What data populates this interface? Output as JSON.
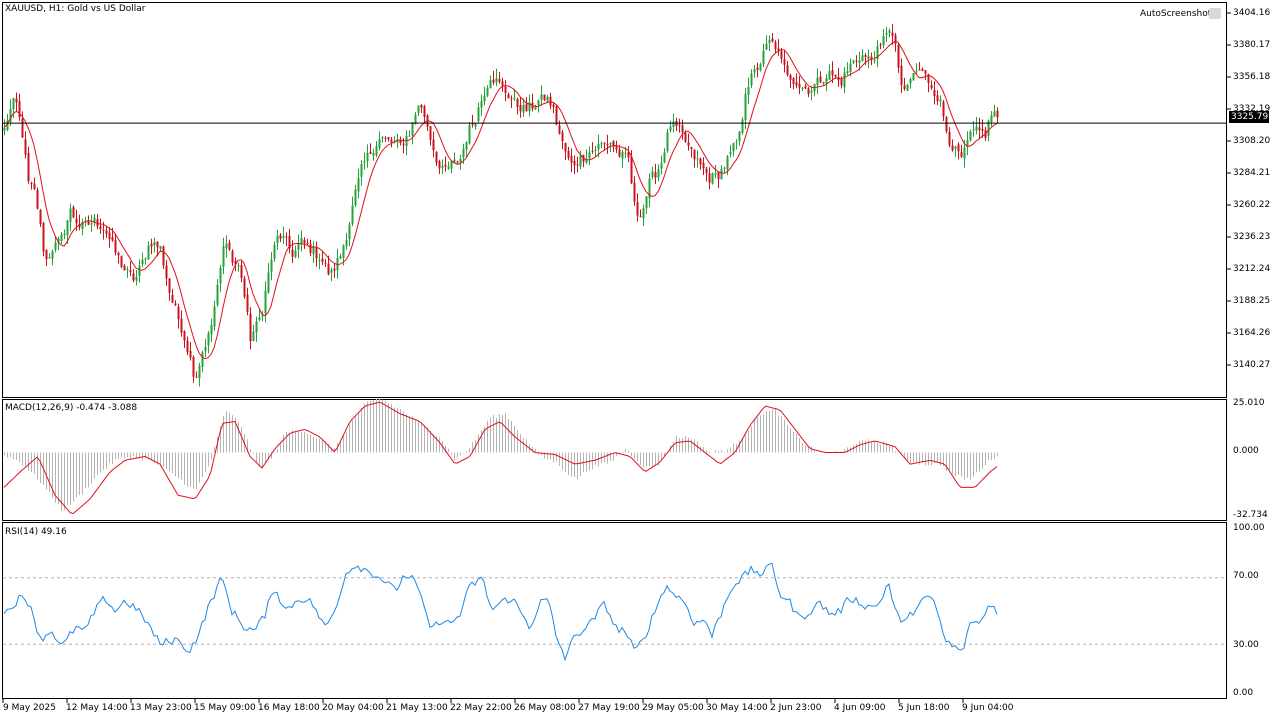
{
  "chart_title": "XAUUSD, H1:  Gold vs US Dollar",
  "watermark": "AutoScreenshot",
  "current_price": "3325.79",
  "colors": {
    "up": "#26a23a",
    "down": "#c8141e",
    "ma": "#e0101a",
    "macd_hist": "#b4b4b4",
    "macd_signal": "#e0101a",
    "rsi": "#1e88e5",
    "level_line": "#000000"
  },
  "price_axis": [
    "3404.16",
    "3380.17",
    "3356.18",
    "3332.19",
    "3308.20",
    "3284.21",
    "3260.22",
    "3236.23",
    "3212.24",
    "3188.25",
    "3164.26",
    "3140.27"
  ],
  "macd": {
    "label": "MACD(12,26,9) -0.474 -3.088",
    "axis": [
      "25.010",
      "0.000",
      "-32.734"
    ]
  },
  "rsi": {
    "label": "RSI(14) 49.16",
    "axis": [
      "100.00",
      "70.00",
      "30.00",
      "0.00"
    ]
  },
  "time_axis": [
    "9 May 2025",
    "12 May 14:00",
    "13 May 23:00",
    "15 May 09:00",
    "16 May 18:00",
    "20 May 04:00",
    "21 May 13:00",
    "22 May 22:00",
    "26 May 08:00",
    "27 May 19:00",
    "29 May 05:00",
    "30 May 14:00",
    "2 Jun 23:00",
    "4 Jun 09:00",
    "5 Jun 18:00",
    "9 Jun 04:00"
  ],
  "chart_data": [
    {
      "type": "candlestick",
      "series_name": "XAUUSD H1",
      "ylim": [
        3127,
        3413
      ],
      "horizontal_level": 3325.79,
      "close_waypoints": [
        [
          0,
          3310
        ],
        [
          8,
          3332
        ],
        [
          15,
          3343
        ],
        [
          22,
          3318
        ],
        [
          28,
          3282
        ],
        [
          35,
          3275
        ],
        [
          45,
          3225
        ],
        [
          52,
          3235
        ],
        [
          60,
          3240
        ],
        [
          70,
          3262
        ],
        [
          80,
          3250
        ],
        [
          95,
          3255
        ],
        [
          105,
          3248
        ],
        [
          115,
          3232
        ],
        [
          125,
          3218
        ],
        [
          135,
          3212
        ],
        [
          150,
          3240
        ],
        [
          160,
          3235
        ],
        [
          170,
          3200
        ],
        [
          180,
          3180
        ],
        [
          188,
          3160
        ],
        [
          195,
          3140
        ],
        [
          202,
          3160
        ],
        [
          210,
          3175
        ],
        [
          218,
          3210
        ],
        [
          225,
          3245
        ],
        [
          232,
          3225
        ],
        [
          240,
          3220
        ],
        [
          250,
          3170
        ],
        [
          257,
          3180
        ],
        [
          262,
          3190
        ],
        [
          270,
          3225
        ],
        [
          278,
          3245
        ],
        [
          285,
          3240
        ],
        [
          293,
          3230
        ],
        [
          300,
          3240
        ],
        [
          310,
          3235
        ],
        [
          320,
          3228
        ],
        [
          330,
          3215
        ],
        [
          340,
          3230
        ],
        [
          348,
          3250
        ],
        [
          355,
          3275
        ],
        [
          362,
          3295
        ],
        [
          370,
          3305
        ],
        [
          380,
          3315
        ],
        [
          390,
          3312
        ],
        [
          400,
          3310
        ],
        [
          410,
          3320
        ],
        [
          418,
          3340
        ],
        [
          425,
          3330
        ],
        [
          432,
          3310
        ],
        [
          440,
          3290
        ],
        [
          450,
          3295
        ],
        [
          460,
          3300
        ],
        [
          468,
          3320
        ],
        [
          475,
          3330
        ],
        [
          482,
          3345
        ],
        [
          490,
          3360
        ],
        [
          498,
          3355
        ],
        [
          506,
          3348
        ],
        [
          515,
          3340
        ],
        [
          525,
          3335
        ],
        [
          535,
          3340
        ],
        [
          545,
          3345
        ],
        [
          552,
          3338
        ],
        [
          560,
          3315
        ],
        [
          570,
          3295
        ],
        [
          580,
          3300
        ],
        [
          590,
          3305
        ],
        [
          600,
          3310
        ],
        [
          610,
          3312
        ],
        [
          620,
          3302
        ],
        [
          628,
          3300
        ],
        [
          635,
          3260
        ],
        [
          642,
          3262
        ],
        [
          650,
          3285
        ],
        [
          660,
          3295
        ],
        [
          670,
          3325
        ],
        [
          680,
          3320
        ],
        [
          690,
          3305
        ],
        [
          700,
          3295
        ],
        [
          710,
          3285
        ],
        [
          720,
          3290
        ],
        [
          730,
          3303
        ],
        [
          740,
          3318
        ],
        [
          745,
          3350
        ],
        [
          752,
          3360
        ],
        [
          760,
          3370
        ],
        [
          768,
          3385
        ],
        [
          775,
          3382
        ],
        [
          782,
          3368
        ],
        [
          790,
          3360
        ],
        [
          800,
          3352
        ],
        [
          810,
          3350
        ],
        [
          820,
          3358
        ],
        [
          830,
          3362
        ],
        [
          840,
          3355
        ],
        [
          850,
          3368
        ],
        [
          860,
          3375
        ],
        [
          870,
          3372
        ],
        [
          880,
          3380
        ],
        [
          888,
          3398
        ],
        [
          895,
          3380
        ],
        [
          903,
          3345
        ],
        [
          910,
          3358
        ],
        [
          918,
          3365
        ],
        [
          925,
          3360
        ],
        [
          932,
          3352
        ],
        [
          940,
          3340
        ],
        [
          948,
          3315
        ],
        [
          955,
          3305
        ],
        [
          962,
          3300
        ],
        [
          970,
          3318
        ],
        [
          978,
          3320
        ],
        [
          985,
          3318
        ],
        [
          992,
          3335
        ],
        [
          999,
          3328
        ]
      ]
    },
    {
      "type": "histogram_line",
      "series_name": "MACD(12,26,9)",
      "ylim": [
        -32.734,
        25.01
      ],
      "hist_waypoints": [
        [
          0,
          0
        ],
        [
          20,
          -5
        ],
        [
          40,
          -15
        ],
        [
          62,
          -30
        ],
        [
          80,
          -22
        ],
        [
          100,
          -10
        ],
        [
          115,
          -4
        ],
        [
          130,
          -2
        ],
        [
          150,
          -4
        ],
        [
          175,
          -12
        ],
        [
          195,
          -20
        ],
        [
          210,
          -5
        ],
        [
          225,
          22
        ],
        [
          240,
          15
        ],
        [
          258,
          -8
        ],
        [
          270,
          -4
        ],
        [
          285,
          10
        ],
        [
          300,
          12
        ],
        [
          315,
          8
        ],
        [
          335,
          2
        ],
        [
          350,
          15
        ],
        [
          365,
          25
        ],
        [
          380,
          28
        ],
        [
          400,
          22
        ],
        [
          420,
          15
        ],
        [
          440,
          8
        ],
        [
          455,
          -4
        ],
        [
          470,
          3
        ],
        [
          490,
          18
        ],
        [
          505,
          20
        ],
        [
          520,
          10
        ],
        [
          540,
          -2
        ],
        [
          555,
          -5
        ],
        [
          575,
          -14
        ],
        [
          590,
          -8
        ],
        [
          610,
          -5
        ],
        [
          625,
          2
        ],
        [
          645,
          -8
        ],
        [
          660,
          -6
        ],
        [
          675,
          8
        ],
        [
          690,
          8
        ],
        [
          710,
          0
        ],
        [
          730,
          2
        ],
        [
          745,
          10
        ],
        [
          760,
          20
        ],
        [
          775,
          22
        ],
        [
          790,
          12
        ],
        [
          805,
          4
        ],
        [
          820,
          0
        ],
        [
          840,
          0
        ],
        [
          855,
          5
        ],
        [
          870,
          6
        ],
        [
          890,
          4
        ],
        [
          905,
          -4
        ],
        [
          925,
          -6
        ],
        [
          940,
          -6
        ],
        [
          955,
          -12
        ],
        [
          970,
          -14
        ],
        [
          985,
          -6
        ],
        [
          1000,
          0
        ]
      ],
      "signal_waypoints": [
        [
          0,
          -20
        ],
        [
          20,
          -10
        ],
        [
          38,
          -2
        ],
        [
          55,
          -22
        ],
        [
          72,
          -32
        ],
        [
          90,
          -24
        ],
        [
          110,
          -10
        ],
        [
          125,
          -4
        ],
        [
          145,
          -2
        ],
        [
          160,
          -6
        ],
        [
          178,
          -22
        ],
        [
          195,
          -24
        ],
        [
          210,
          -12
        ],
        [
          222,
          15
        ],
        [
          235,
          16
        ],
        [
          250,
          -2
        ],
        [
          262,
          -8
        ],
        [
          275,
          2
        ],
        [
          290,
          10
        ],
        [
          305,
          12
        ],
        [
          320,
          8
        ],
        [
          335,
          0
        ],
        [
          350,
          16
        ],
        [
          365,
          24
        ],
        [
          380,
          26
        ],
        [
          400,
          20
        ],
        [
          420,
          16
        ],
        [
          440,
          5
        ],
        [
          455,
          -6
        ],
        [
          470,
          -2
        ],
        [
          485,
          12
        ],
        [
          500,
          16
        ],
        [
          515,
          8
        ],
        [
          535,
          0
        ],
        [
          555,
          -1
        ],
        [
          575,
          -6
        ],
        [
          595,
          -4
        ],
        [
          615,
          0
        ],
        [
          630,
          -2
        ],
        [
          645,
          -10
        ],
        [
          660,
          -5
        ],
        [
          675,
          5
        ],
        [
          690,
          6
        ],
        [
          705,
          0
        ],
        [
          720,
          -6
        ],
        [
          735,
          0
        ],
        [
          750,
          14
        ],
        [
          765,
          24
        ],
        [
          780,
          22
        ],
        [
          795,
          12
        ],
        [
          810,
          2
        ],
        [
          825,
          0
        ],
        [
          845,
          0
        ],
        [
          860,
          4
        ],
        [
          875,
          6
        ],
        [
          895,
          3
        ],
        [
          910,
          -6
        ],
        [
          930,
          -4
        ],
        [
          945,
          -6
        ],
        [
          960,
          -18
        ],
        [
          975,
          -18
        ],
        [
          990,
          -10
        ],
        [
          1000,
          -6
        ]
      ]
    },
    {
      "type": "line",
      "series_name": "RSI(14)",
      "ylim": [
        0,
        100
      ],
      "levels": [
        70,
        30
      ],
      "waypoints": [
        [
          0,
          45
        ],
        [
          10,
          52
        ],
        [
          20,
          58
        ],
        [
          30,
          55
        ],
        [
          40,
          33
        ],
        [
          52,
          38
        ],
        [
          62,
          28
        ],
        [
          75,
          40
        ],
        [
          85,
          38
        ],
        [
          95,
          50
        ],
        [
          105,
          58
        ],
        [
          115,
          50
        ],
        [
          125,
          56
        ],
        [
          135,
          52
        ],
        [
          145,
          45
        ],
        [
          160,
          30
        ],
        [
          175,
          33
        ],
        [
          190,
          26
        ],
        [
          200,
          38
        ],
        [
          210,
          55
        ],
        [
          222,
          70
        ],
        [
          232,
          50
        ],
        [
          245,
          40
        ],
        [
          255,
          38
        ],
        [
          265,
          48
        ],
        [
          275,
          65
        ],
        [
          285,
          50
        ],
        [
          300,
          58
        ],
        [
          312,
          55
        ],
        [
          325,
          40
        ],
        [
          335,
          50
        ],
        [
          345,
          72
        ],
        [
          355,
          78
        ],
        [
          365,
          75
        ],
        [
          375,
          72
        ],
        [
          385,
          68
        ],
        [
          395,
          62
        ],
        [
          405,
          72
        ],
        [
          415,
          68
        ],
        [
          425,
          50
        ],
        [
          432,
          38
        ],
        [
          440,
          45
        ],
        [
          450,
          42
        ],
        [
          460,
          48
        ],
        [
          470,
          65
        ],
        [
          482,
          70
        ],
        [
          492,
          50
        ],
        [
          500,
          55
        ],
        [
          512,
          58
        ],
        [
          520,
          50
        ],
        [
          530,
          40
        ],
        [
          540,
          55
        ],
        [
          548,
          57
        ],
        [
          556,
          35
        ],
        [
          565,
          22
        ],
        [
          575,
          35
        ],
        [
          590,
          42
        ],
        [
          605,
          55
        ],
        [
          615,
          40
        ],
        [
          625,
          38
        ],
        [
          635,
          25
        ],
        [
          645,
          35
        ],
        [
          655,
          50
        ],
        [
          665,
          65
        ],
        [
          675,
          60
        ],
        [
          685,
          55
        ],
        [
          695,
          42
        ],
        [
          705,
          45
        ],
        [
          712,
          35
        ],
        [
          722,
          50
        ],
        [
          732,
          65
        ],
        [
          742,
          70
        ],
        [
          752,
          75
        ],
        [
          762,
          72
        ],
        [
          772,
          78
        ],
        [
          780,
          60
        ],
        [
          790,
          55
        ],
        [
          800,
          45
        ],
        [
          810,
          50
        ],
        [
          820,
          55
        ],
        [
          830,
          48
        ],
        [
          840,
          50
        ],
        [
          850,
          58
        ],
        [
          860,
          55
        ],
        [
          870,
          52
        ],
        [
          880,
          55
        ],
        [
          888,
          68
        ],
        [
          895,
          50
        ],
        [
          905,
          42
        ],
        [
          915,
          52
        ],
        [
          925,
          58
        ],
        [
          935,
          55
        ],
        [
          945,
          32
        ],
        [
          955,
          28
        ],
        [
          962,
          25
        ],
        [
          972,
          45
        ],
        [
          980,
          42
        ],
        [
          990,
          55
        ],
        [
          999,
          49
        ]
      ]
    }
  ]
}
